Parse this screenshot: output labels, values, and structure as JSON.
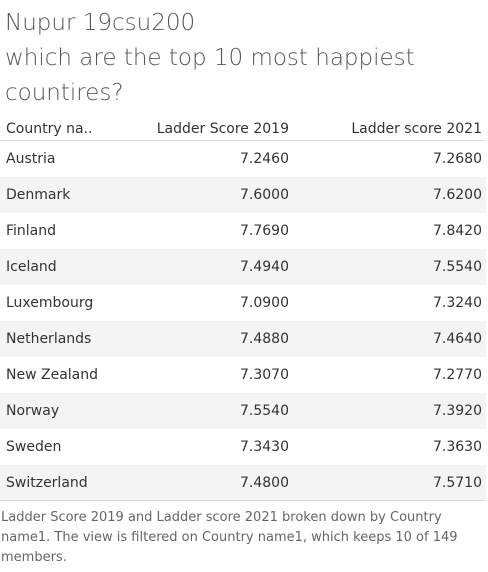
{
  "title": {
    "line1": "Nupur 19csu200",
    "line2": "which are the top 10 most happiest",
    "line3": "countires?"
  },
  "caption": "Ladder Score 2019 and Ladder score 2021 broken down by Country name1.  The view is filtered on Country name1, which keeps 10 of 149 members.",
  "colors": {
    "alt_row": "#f4f4f4",
    "rule": "#d9d9d9",
    "title": "#555555"
  },
  "chart_data": {
    "type": "table",
    "columns": [
      "Country na..",
      "Ladder Score 2019",
      "Ladder score 2021"
    ],
    "rows": [
      {
        "country": "Austria",
        "ladder_2019": "7.2460",
        "ladder_2021": "7.2680"
      },
      {
        "country": "Denmark",
        "ladder_2019": "7.6000",
        "ladder_2021": "7.6200"
      },
      {
        "country": "Finland",
        "ladder_2019": "7.7690",
        "ladder_2021": "7.8420"
      },
      {
        "country": "Iceland",
        "ladder_2019": "7.4940",
        "ladder_2021": "7.5540"
      },
      {
        "country": "Luxembourg",
        "ladder_2019": "7.0900",
        "ladder_2021": "7.3240"
      },
      {
        "country": "Netherlands",
        "ladder_2019": "7.4880",
        "ladder_2021": "7.4640"
      },
      {
        "country": "New Zealand",
        "ladder_2019": "7.3070",
        "ladder_2021": "7.2770"
      },
      {
        "country": "Norway",
        "ladder_2019": "7.5540",
        "ladder_2021": "7.3920"
      },
      {
        "country": "Sweden",
        "ladder_2019": "7.3430",
        "ladder_2021": "7.3630"
      },
      {
        "country": "Switzerland",
        "ladder_2019": "7.4800",
        "ladder_2021": "7.5710"
      }
    ]
  }
}
